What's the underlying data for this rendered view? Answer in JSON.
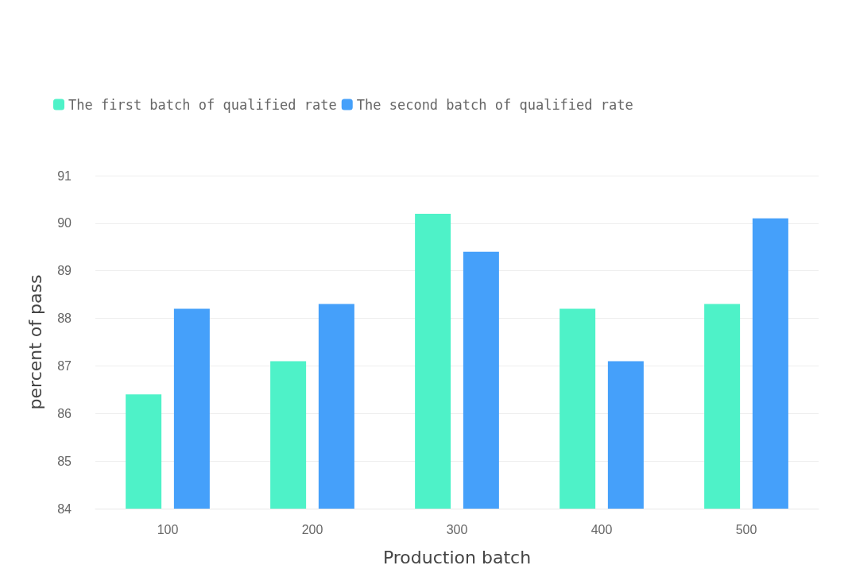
{
  "chart_data": {
    "type": "bar",
    "xlabel": "Production batch",
    "ylabel": "percent of pass",
    "categories": [
      "100",
      "200",
      "300",
      "400",
      "500"
    ],
    "series": [
      {
        "name": "The first batch of qualified rate",
        "color": "#4ef2c8",
        "values": [
          86.4,
          87.1,
          90.2,
          88.2,
          88.3
        ]
      },
      {
        "name": "The second batch of qualified rate",
        "color": "#45a0fa",
        "values": [
          88.2,
          88.3,
          89.4,
          87.1,
          90.1
        ]
      }
    ],
    "ylim": [
      84,
      91
    ],
    "yticks": [
      84,
      85,
      86,
      87,
      88,
      89,
      90,
      91
    ],
    "grid": "y",
    "legend": "top left"
  }
}
